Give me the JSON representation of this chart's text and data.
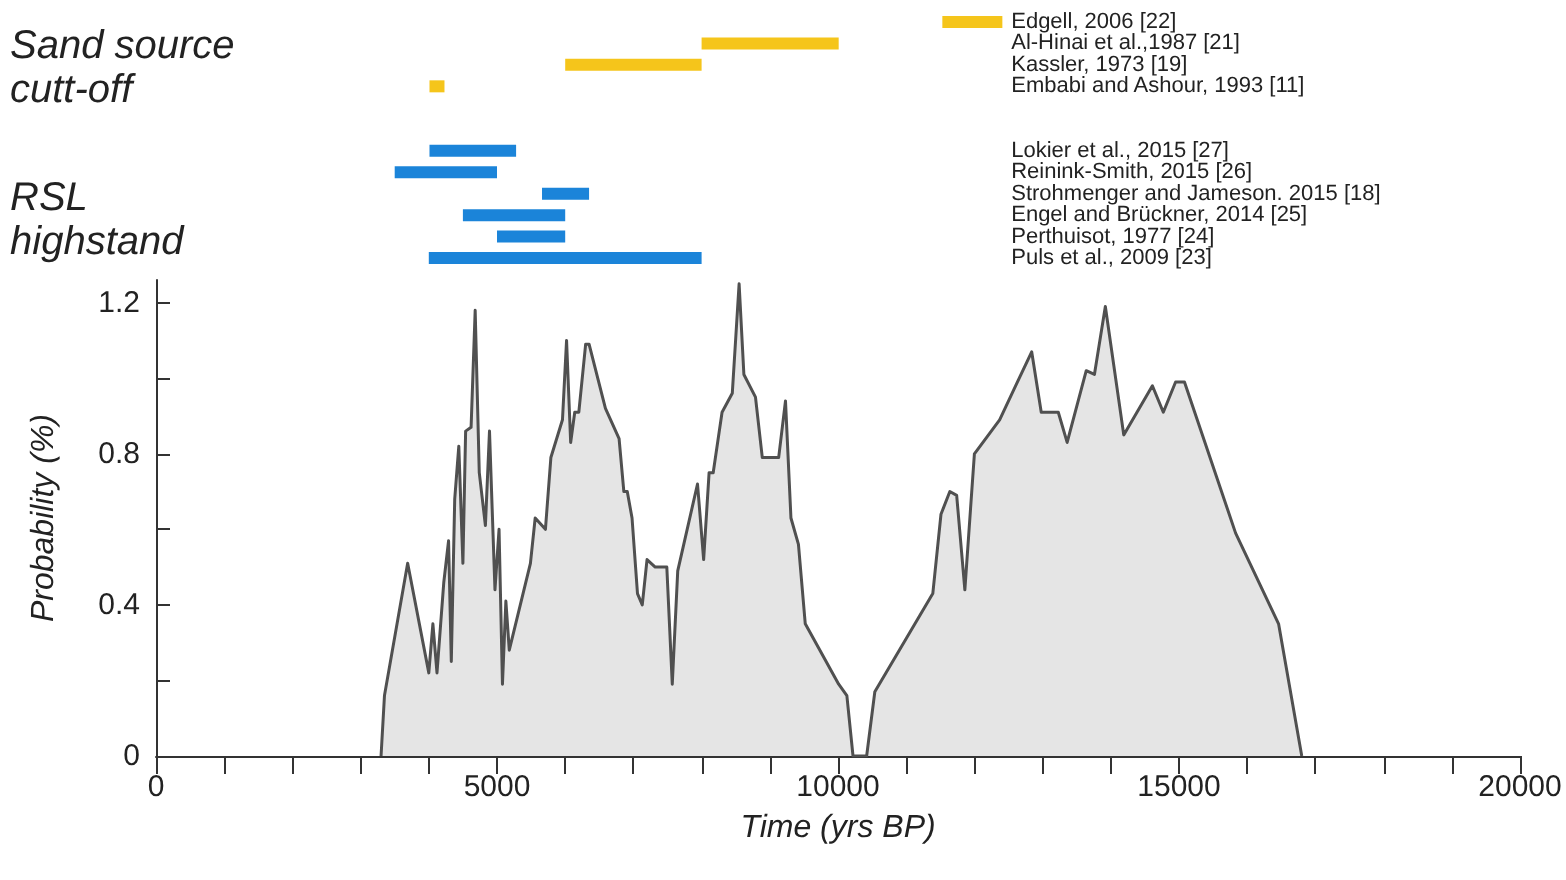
{
  "chart_data": [
    {
      "type": "bar",
      "orientation": "horizontal",
      "tick_labels": "y",
      "xlim": [
        0,
        20000
      ],
      "categories": [
        "Edgell, 2006 [22]",
        "Al-Hinai et al.,1987 [21]",
        "Kassler, 1973 [19]",
        "Embabi and Ashour, 1993 [11]",
        null,
        null,
        "Lokier et al., 2015 [27]",
        "Reinink-Smith, 2015 [26]",
        "Strohmenger and Jameson. 2015 [18]",
        "Engel and Brückner, 2014 [25]",
        "Perthuisot, 1977 [24]",
        "Puls et al., 2009 [23]"
      ],
      "base": [
        11530,
        8000,
        6000,
        4010,
        null,
        null,
        4010,
        3500,
        5660,
        4500,
        5000,
        4000
      ],
      "values": [
        880,
        2010,
        2000,
        220,
        null,
        null,
        1270,
        1500,
        690,
        1500,
        1000,
        4000
      ],
      "colors": [
        "#f5c51b",
        "#f5c51b",
        "#f5c51b",
        "#f5c51b",
        null,
        null,
        "#1b84d9",
        "#1b84d9",
        "#1b84d9",
        "#1b84d9",
        "#1b84d9",
        "#1b84d9"
      ],
      "annotations": [
        "Sand source cutt-off",
        "RSL highstand"
      ]
    },
    {
      "type": "area",
      "xlabel": "Time (yrs BP)",
      "ylabel": "Probability (%)",
      "xlim": [
        0,
        20000
      ],
      "ylim": [
        0,
        1.26
      ],
      "xticks": [
        0,
        {
          "value": 1000,
          "label": null
        },
        {
          "value": 2000,
          "label": null
        },
        {
          "value": 3000,
          "label": null
        },
        {
          "value": 4000,
          "label": null
        },
        5000,
        {
          "value": 6000,
          "label": null
        },
        {
          "value": 7000,
          "label": null
        },
        {
          "value": 8000,
          "label": null
        },
        {
          "value": 9000,
          "label": null
        },
        10000,
        {
          "value": 11000,
          "label": null
        },
        {
          "value": 12000,
          "label": null
        },
        {
          "value": 13000,
          "label": null
        },
        {
          "value": 14000,
          "label": null
        },
        15000,
        {
          "value": 16000,
          "label": null
        },
        {
          "value": 17000,
          "label": null
        },
        {
          "value": 18000,
          "label": null
        },
        {
          "value": 19000,
          "label": null
        },
        20000
      ],
      "yticks": [
        0,
        {
          "value": 0.2,
          "label": null
        },
        0.4,
        {
          "value": 0.6,
          "label": null
        },
        0.8,
        {
          "value": 1.0,
          "label": null
        },
        1.2
      ],
      "series": [
        {
          "color": "#505050",
          "x": [
            3300,
            3350,
            3690,
            4000,
            4060,
            4120,
            4220,
            4290,
            4330,
            4380,
            4440,
            4500,
            4540,
            4620,
            4680,
            4740,
            4830,
            4890,
            4970,
            5030,
            5080,
            5130,
            5180,
            5490,
            5560,
            5710,
            5790,
            5960,
            6020,
            6080,
            6140,
            6200,
            6300,
            6350,
            6590,
            6790,
            6860,
            6910,
            6980,
            7060,
            7130,
            7200,
            7320,
            7490,
            7570,
            7650,
            7940,
            8030,
            8110,
            8170,
            8300,
            8450,
            8550,
            8620,
            8790,
            8890,
            9130,
            9230,
            9310,
            9420,
            9520,
            10010,
            10130,
            10220,
            10420,
            10540,
            11390,
            11510,
            11640,
            11740,
            11860,
            12000,
            12370,
            12840,
            12980,
            13230,
            13360,
            13640,
            13760,
            13920,
            14190,
            14610,
            14770,
            14950,
            15080,
            15830,
            16460,
            16800
          ],
          "values": [
            0,
            0.16,
            0.51,
            0.22,
            0.35,
            0.22,
            0.46,
            0.57,
            0.25,
            0.68,
            0.82,
            0.51,
            0.86,
            0.87,
            1.18,
            0.75,
            0.61,
            0.86,
            0.44,
            0.6,
            0.19,
            0.41,
            0.28,
            0.51,
            0.63,
            0.6,
            0.79,
            0.89,
            1.1,
            0.83,
            0.91,
            0.91,
            1.09,
            1.09,
            0.92,
            0.84,
            0.7,
            0.7,
            0.63,
            0.43,
            0.4,
            0.52,
            0.5,
            0.5,
            0.19,
            0.49,
            0.72,
            0.52,
            0.75,
            0.75,
            0.91,
            0.96,
            1.25,
            1.01,
            0.95,
            0.79,
            0.79,
            0.94,
            0.63,
            0.56,
            0.35,
            0.19,
            0.16,
            0,
            0,
            0.17,
            0.43,
            0.64,
            0.7,
            0.69,
            0.44,
            0.8,
            0.89,
            1.07,
            0.91,
            0.91,
            0.83,
            1.02,
            1.01,
            1.19,
            0.85,
            0.98,
            0.91,
            0.99,
            0.99,
            0.59,
            0.35,
            0
          ]
        }
      ]
    }
  ]
}
